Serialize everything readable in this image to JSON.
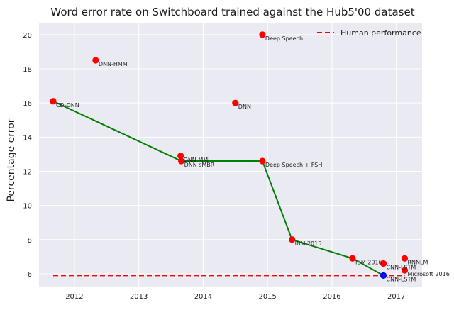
{
  "chart_data": {
    "type": "scatter",
    "title": "Word error rate on Switchboard trained against the Hub5'00 dataset",
    "xlabel": "",
    "ylabel": "Percentage error",
    "xlim": [
      2011.45,
      2017.4
    ],
    "ylim": [
      5.25,
      20.7
    ],
    "x_ticks": [
      2012,
      2013,
      2014,
      2015,
      2016,
      2017
    ],
    "y_ticks": [
      6,
      8,
      10,
      12,
      14,
      16,
      18,
      20
    ],
    "grid": true,
    "legend_position": "top-right",
    "colors": {
      "background": "#eaeaf2",
      "grid": "#ffffff",
      "points": "#ff0000",
      "frontier": "#008000",
      "human": "#ff0000",
      "highlight": "#0000ff"
    },
    "points": [
      {
        "label": "CD-DNN",
        "x": 2011.67,
        "y": 16.1
      },
      {
        "label": "DNN-HMM",
        "x": 2012.33,
        "y": 18.5
      },
      {
        "label": "DNN MMI",
        "x": 2013.65,
        "y": 12.9
      },
      {
        "label": "DNN sMBR",
        "x": 2013.66,
        "y": 12.6
      },
      {
        "label": "DNN",
        "x": 2014.5,
        "y": 16.0
      },
      {
        "label": "Deep Speech",
        "x": 2014.92,
        "y": 20.0
      },
      {
        "label": "Deep Speech + FSH",
        "x": 2014.92,
        "y": 12.6
      },
      {
        "label": "IBM 2015",
        "x": 2015.38,
        "y": 8.0
      },
      {
        "label": "IBM 2016",
        "x": 2016.32,
        "y": 6.9
      },
      {
        "label": "CNN-LSTM",
        "x": 2016.8,
        "y": 6.6
      },
      {
        "label": "RNNLM",
        "x": 2017.13,
        "y": 6.9
      },
      {
        "label": "Microsoft 2016",
        "x": 2017.13,
        "y": 6.2
      },
      {
        "label": "CNN-LSTM",
        "x": 2016.8,
        "y": 5.9
      }
    ],
    "frontier": [
      {
        "x": 2011.67,
        "y": 16.1
      },
      {
        "x": 2013.66,
        "y": 12.6
      },
      {
        "x": 2014.92,
        "y": 12.6
      },
      {
        "x": 2015.38,
        "y": 8.0
      },
      {
        "x": 2016.32,
        "y": 6.9
      },
      {
        "x": 2016.8,
        "y": 5.9
      }
    ],
    "series": [
      {
        "name": "Human performance",
        "x": [
          2011.67,
          2017.13
        ],
        "values": [
          5.9,
          5.9
        ]
      }
    ]
  }
}
